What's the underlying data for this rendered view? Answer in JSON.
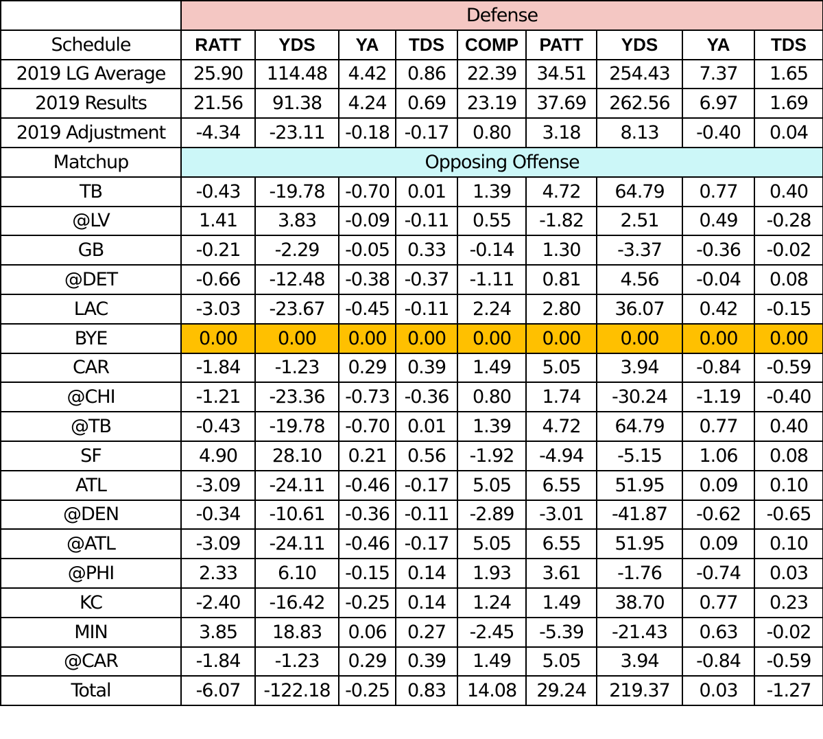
{
  "section_labels": {
    "defense": "Defense",
    "opposing_offense": "Opposing Offense",
    "matchup": "Matchup"
  },
  "header": {
    "label": "Schedule",
    "columns": [
      "RATT",
      "YDS",
      "YA",
      "TDS",
      "COMP",
      "PATT",
      "YDS",
      "YA",
      "TDS"
    ]
  },
  "summary_rows": [
    {
      "label": "2019 LG Average",
      "values": [
        "25.90",
        "114.48",
        "4.42",
        "0.86",
        "22.39",
        "34.51",
        "254.43",
        "7.37",
        "1.65"
      ]
    },
    {
      "label": "2019 Results",
      "values": [
        "21.56",
        "91.38",
        "4.24",
        "0.69",
        "23.19",
        "37.69",
        "262.56",
        "6.97",
        "1.69"
      ]
    },
    {
      "label": "2019 Adjustment",
      "values": [
        "-4.34",
        "-23.11",
        "-0.18",
        "-0.17",
        "0.80",
        "3.18",
        "8.13",
        "-0.40",
        "0.04"
      ]
    }
  ],
  "matchup_rows": [
    {
      "label": "TB",
      "values": [
        "-0.43",
        "-19.78",
        "-0.70",
        "0.01",
        "1.39",
        "4.72",
        "64.79",
        "0.77",
        "0.40"
      ]
    },
    {
      "label": "@LV",
      "values": [
        "1.41",
        "3.83",
        "-0.09",
        "-0.11",
        "0.55",
        "-1.82",
        "2.51",
        "0.49",
        "-0.28"
      ]
    },
    {
      "label": "GB",
      "values": [
        "-0.21",
        "-2.29",
        "-0.05",
        "0.33",
        "-0.14",
        "1.30",
        "-3.37",
        "-0.36",
        "-0.02"
      ]
    },
    {
      "label": "@DET",
      "values": [
        "-0.66",
        "-12.48",
        "-0.38",
        "-0.37",
        "-1.11",
        "0.81",
        "4.56",
        "-0.04",
        "0.08"
      ]
    },
    {
      "label": "LAC",
      "values": [
        "-3.03",
        "-23.67",
        "-0.45",
        "-0.11",
        "2.24",
        "2.80",
        "36.07",
        "0.42",
        "-0.15"
      ]
    },
    {
      "label": "BYE",
      "values": [
        "0.00",
        "0.00",
        "0.00",
        "0.00",
        "0.00",
        "0.00",
        "0.00",
        "0.00",
        "0.00"
      ],
      "highlight": true
    },
    {
      "label": "CAR",
      "values": [
        "-1.84",
        "-1.23",
        "0.29",
        "0.39",
        "1.49",
        "5.05",
        "3.94",
        "-0.84",
        "-0.59"
      ]
    },
    {
      "label": "@CHI",
      "values": [
        "-1.21",
        "-23.36",
        "-0.73",
        "-0.36",
        "0.80",
        "1.74",
        "-30.24",
        "-1.19",
        "-0.40"
      ]
    },
    {
      "label": "@TB",
      "values": [
        "-0.43",
        "-19.78",
        "-0.70",
        "0.01",
        "1.39",
        "4.72",
        "64.79",
        "0.77",
        "0.40"
      ]
    },
    {
      "label": "SF",
      "values": [
        "4.90",
        "28.10",
        "0.21",
        "0.56",
        "-1.92",
        "-4.94",
        "-5.15",
        "1.06",
        "0.08"
      ]
    },
    {
      "label": "ATL",
      "values": [
        "-3.09",
        "-24.11",
        "-0.46",
        "-0.17",
        "5.05",
        "6.55",
        "51.95",
        "0.09",
        "0.10"
      ]
    },
    {
      "label": "@DEN",
      "values": [
        "-0.34",
        "-10.61",
        "-0.36",
        "-0.11",
        "-2.89",
        "-3.01",
        "-41.87",
        "-0.62",
        "-0.65"
      ]
    },
    {
      "label": "@ATL",
      "values": [
        "-3.09",
        "-24.11",
        "-0.46",
        "-0.17",
        "5.05",
        "6.55",
        "51.95",
        "0.09",
        "0.10"
      ]
    },
    {
      "label": "@PHI",
      "values": [
        "2.33",
        "6.10",
        "-0.15",
        "0.14",
        "1.93",
        "3.61",
        "-1.76",
        "-0.74",
        "0.03"
      ]
    },
    {
      "label": "KC",
      "values": [
        "-2.40",
        "-16.42",
        "-0.25",
        "0.14",
        "1.24",
        "1.49",
        "38.70",
        "0.77",
        "0.23"
      ]
    },
    {
      "label": "MIN",
      "values": [
        "3.85",
        "18.83",
        "0.06",
        "0.27",
        "-2.45",
        "-5.39",
        "-21.43",
        "0.63",
        "-0.02"
      ]
    },
    {
      "label": "@CAR",
      "values": [
        "-1.84",
        "-1.23",
        "0.29",
        "0.39",
        "1.49",
        "5.05",
        "3.94",
        "-0.84",
        "-0.59"
      ]
    }
  ],
  "total_row": {
    "label": "Total",
    "values": [
      "-6.07",
      "-122.18",
      "-0.25",
      "0.83",
      "14.08",
      "29.24",
      "219.37",
      "0.03",
      "-1.27"
    ]
  },
  "colors": {
    "defense_band": "#f4c7c3",
    "offense_band": "#ccf7f8",
    "bye_highlight": "#ffc000"
  }
}
